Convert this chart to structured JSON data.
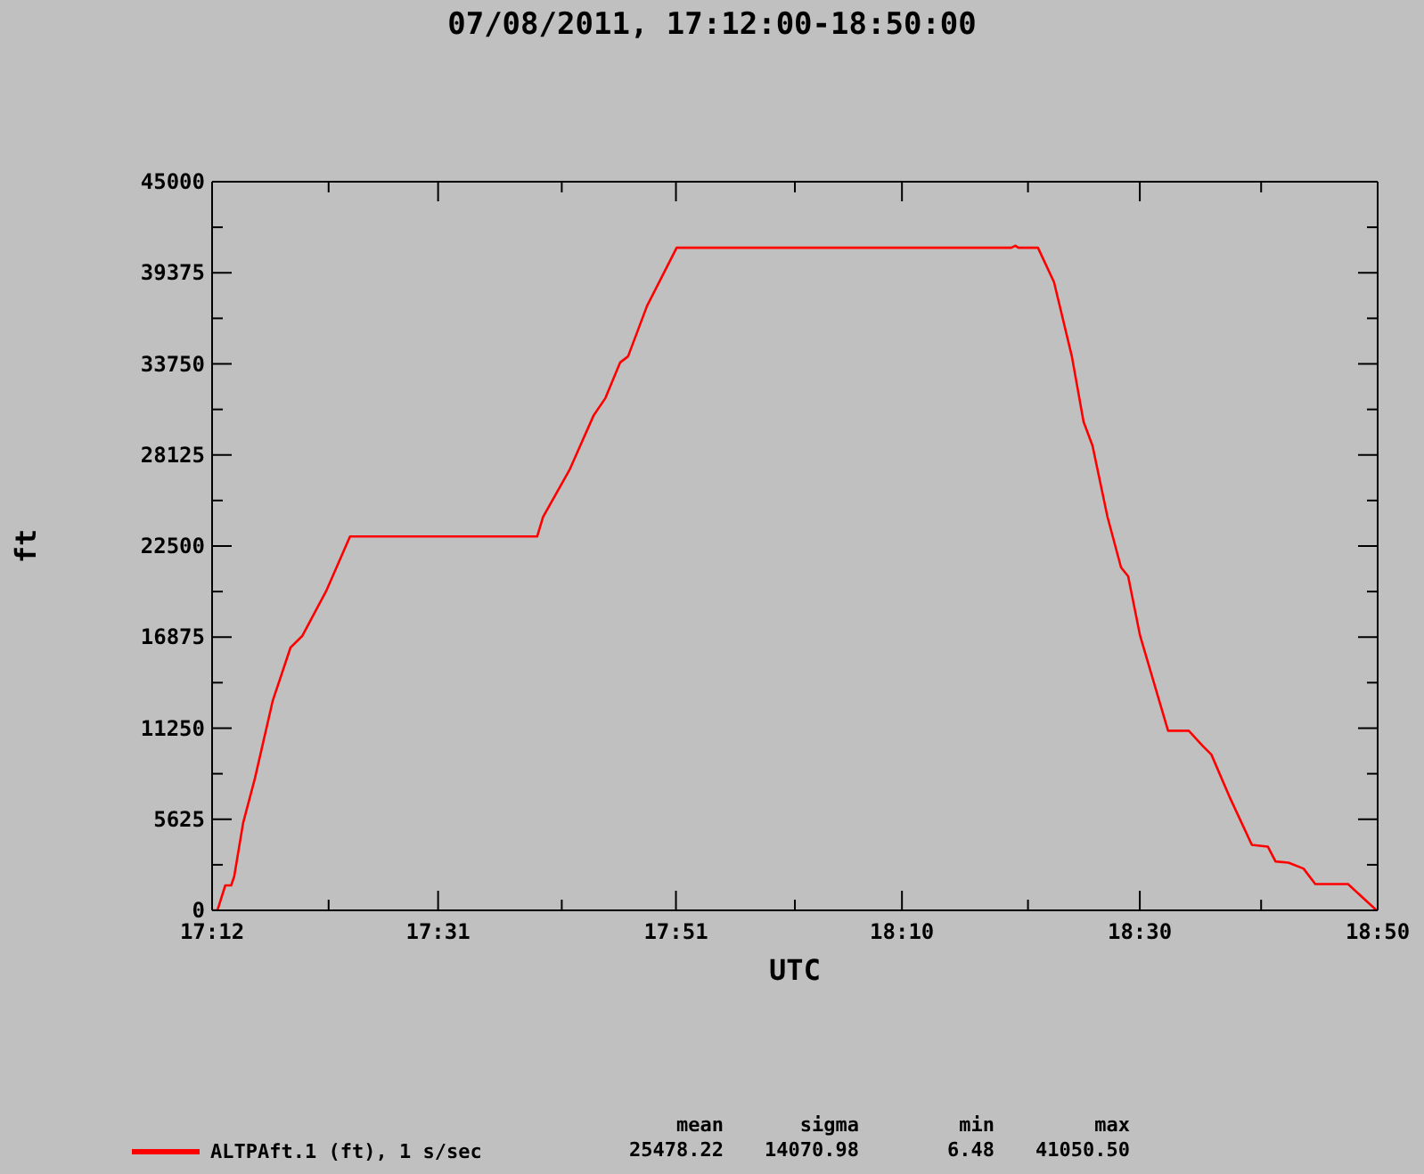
{
  "chart_data": {
    "type": "line",
    "title": "07/08/2011, 17:12:00-18:50:00",
    "xlabel": "UTC",
    "ylabel": "ft",
    "legend": "bottom",
    "marker": "none",
    "line_style": "solid",
    "x": [
      17.2,
      17.2075,
      17.2185,
      17.2267,
      17.231,
      17.2435,
      17.26,
      17.2849,
      17.3099,
      17.3266,
      17.3598,
      17.3933,
      17.6555,
      17.6638,
      17.7013,
      17.7344,
      17.7512,
      17.7719,
      17.7829,
      17.8094,
      17.851,
      18.32,
      18.3256,
      18.33,
      18.3573,
      18.3798,
      18.4048,
      18.4212,
      18.4337,
      18.4547,
      18.4737,
      18.4837,
      18.5004,
      18.5396,
      18.5686,
      18.5878,
      18.6003,
      18.6253,
      18.657,
      18.6795,
      18.6902,
      18.7084,
      18.7294,
      18.7459,
      18.7918,
      18.8318
    ],
    "series": [
      {
        "name": "ALTPAft.1 (ft), 1 s/sec",
        "color": "#ff0000",
        "values": [
          0,
          0,
          1540,
          1540,
          2090,
          5400,
          8150,
          12930,
          16230,
          16960,
          19710,
          23090,
          23090,
          24300,
          27240,
          30540,
          31640,
          33840,
          34210,
          37320,
          40920,
          40920,
          41050,
          40920,
          40920,
          38800,
          34210,
          30170,
          28700,
          24300,
          21180,
          20630,
          16960,
          11090,
          11090,
          10170,
          9620,
          7050,
          4040,
          3930,
          3020,
          2940,
          2580,
          1620,
          1620,
          0
        ]
      }
    ],
    "xlim": [
      17.2,
      18.8333
    ],
    "xticks": [
      {
        "value": 17.2,
        "label": "17:12"
      },
      {
        "value": 17.3633,
        "label": null
      },
      {
        "value": 17.5167,
        "label": "17:31"
      },
      {
        "value": 17.69,
        "label": null
      },
      {
        "value": 17.85,
        "label": "17:51"
      },
      {
        "value": 18.0167,
        "label": null
      },
      {
        "value": 18.1667,
        "label": "18:10"
      },
      {
        "value": 18.3433,
        "label": null
      },
      {
        "value": 18.5,
        "label": "18:30"
      },
      {
        "value": 18.67,
        "label": null
      },
      {
        "value": 18.8333,
        "label": "18:50"
      }
    ],
    "ylim": [
      0,
      45000
    ],
    "yticks": [
      0,
      {
        "value": 2812.5,
        "label": null
      },
      5625,
      {
        "value": 8437.5,
        "label": null
      },
      11250,
      {
        "value": 14062.5,
        "label": null
      },
      16875,
      {
        "value": 19687.5,
        "label": null
      },
      22500,
      {
        "value": 25312.5,
        "label": null
      },
      28125,
      {
        "value": 30937.5,
        "label": null
      },
      33750,
      {
        "value": 36562.5,
        "label": null
      },
      39375,
      {
        "value": 42187.5,
        "label": null
      },
      45000
    ],
    "annotations": [
      "mean",
      "sigma",
      "min",
      "max",
      "25478.22",
      "14070.98",
      "6.48",
      "41050.50"
    ]
  }
}
